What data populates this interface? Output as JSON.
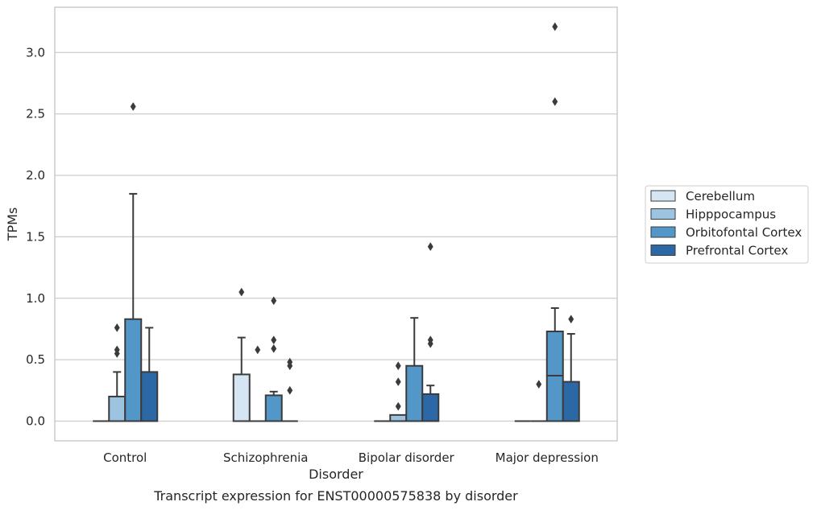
{
  "chart_data": {
    "type": "box",
    "caption": "Transcript expression for ENST00000575838 by disorder",
    "xlabel": "Disorder",
    "ylabel": "TPMs",
    "ylim": [
      -0.15,
      3.35
    ],
    "yticks": [
      "0.0",
      "0.5",
      "1.0",
      "1.5",
      "2.0",
      "2.5",
      "3.0"
    ],
    "grid": "horizontal",
    "legend_position": "right",
    "categories": [
      "Control",
      "Schizophrenia",
      "Bipolar disorder",
      "Major depression"
    ],
    "series": [
      {
        "name": "Cerebellum",
        "color": "#d6e5f4",
        "boxes": [
          {
            "q1": 0,
            "median": 0,
            "q3": 0,
            "whislo": 0,
            "whishi": 0,
            "fliers": []
          },
          {
            "q1": 0,
            "median": 0,
            "q3": 0.38,
            "whislo": 0,
            "whishi": 0.68,
            "fliers": [
              1.05
            ]
          },
          {
            "q1": 0,
            "median": 0,
            "q3": 0,
            "whislo": 0,
            "whishi": 0,
            "fliers": []
          },
          {
            "q1": 0,
            "median": 0,
            "q3": 0,
            "whislo": 0,
            "whishi": 0,
            "fliers": []
          }
        ]
      },
      {
        "name": "Hipppocampus",
        "color": "#9cc3e0",
        "boxes": [
          {
            "q1": 0,
            "median": 0,
            "q3": 0.2,
            "whislo": 0,
            "whishi": 0.4,
            "fliers": [
              0.55,
              0.58,
              0.76
            ]
          },
          {
            "q1": 0,
            "median": 0,
            "q3": 0,
            "whislo": 0,
            "whishi": 0,
            "fliers": [
              0.58
            ]
          },
          {
            "q1": 0,
            "median": 0,
            "q3": 0.05,
            "whislo": 0,
            "whishi": 0.05,
            "fliers": [
              0.12,
              0.32,
              0.45
            ]
          },
          {
            "q1": 0,
            "median": 0,
            "q3": 0,
            "whislo": 0,
            "whishi": 0,
            "fliers": [
              0.3
            ]
          }
        ]
      },
      {
        "name": "Orbitofontal Cortex",
        "color": "#5396c8",
        "boxes": [
          {
            "q1": 0,
            "median": 0,
            "q3": 0.83,
            "whislo": 0,
            "whishi": 1.85,
            "fliers": [
              2.56
            ]
          },
          {
            "q1": 0,
            "median": 0,
            "q3": 0.21,
            "whislo": 0,
            "whishi": 0.24,
            "fliers": [
              0.59,
              0.66,
              0.98
            ]
          },
          {
            "q1": 0,
            "median": 0,
            "q3": 0.45,
            "whislo": 0,
            "whishi": 0.84,
            "fliers": []
          },
          {
            "q1": 0,
            "median": 0.37,
            "q3": 0.73,
            "whislo": 0,
            "whishi": 0.92,
            "fliers": [
              2.6,
              3.21
            ]
          }
        ]
      },
      {
        "name": "Prefrontal Cortex",
        "color": "#2c68a5",
        "boxes": [
          {
            "q1": 0,
            "median": 0,
            "q3": 0.4,
            "whislo": 0,
            "whishi": 0.76,
            "fliers": []
          },
          {
            "q1": 0,
            "median": 0,
            "q3": 0,
            "whislo": 0,
            "whishi": 0,
            "fliers": [
              0.25,
              0.45,
              0.48
            ]
          },
          {
            "q1": 0,
            "median": 0,
            "q3": 0.22,
            "whislo": 0,
            "whishi": 0.29,
            "fliers": [
              0.63,
              0.66,
              1.42
            ]
          },
          {
            "q1": 0,
            "median": 0,
            "q3": 0.32,
            "whislo": 0,
            "whishi": 0.71,
            "fliers": [
              0.83
            ]
          }
        ]
      }
    ]
  }
}
